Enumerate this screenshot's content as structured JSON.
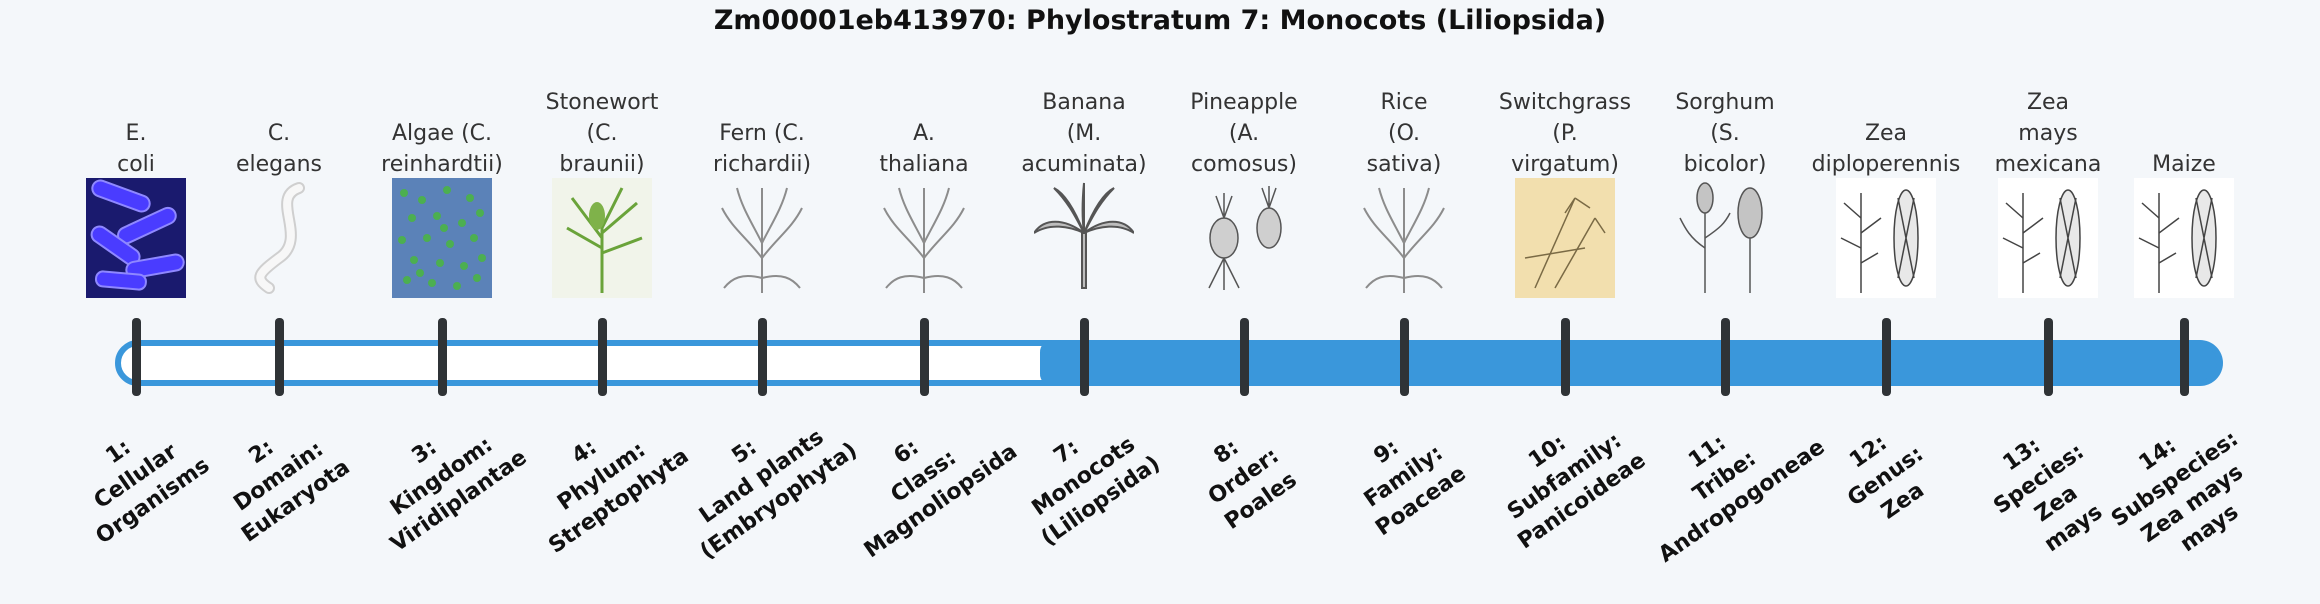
{
  "title": "Zm00001eb413970: Phylostratum 7: Monocots (Liliopsida)",
  "colors": {
    "bar": "#3a97db",
    "tick": "#2f3336",
    "background": "#f4f7fa"
  },
  "current_stratum": 7,
  "strata": [
    {
      "top": [
        "E.",
        "coli"
      ],
      "bottom": [
        "1:",
        "Cellular",
        "Organisms"
      ],
      "image": "ecoli-bacteria-image"
    },
    {
      "top": [
        "C.",
        "elegans"
      ],
      "bottom": [
        "2:",
        "Domain:",
        "Eukaryota"
      ],
      "image": "worm-image"
    },
    {
      "top": [
        "Algae (C.",
        "reinhardtii)"
      ],
      "bottom": [
        "3:",
        "Kingdom:",
        "Viridiplantae"
      ],
      "image": "algae-image"
    },
    {
      "top": [
        "Stonewort",
        "(C.",
        "braunii)"
      ],
      "bottom": [
        "4:",
        "Phylum:",
        "Streptophyta"
      ],
      "image": "stonewort-image"
    },
    {
      "top": [
        "Fern (C.",
        "richardii)"
      ],
      "bottom": [
        "5:",
        "Land plants",
        "(Embryophyta)"
      ],
      "image": "fern-image"
    },
    {
      "top": [
        "A.",
        "thaliana"
      ],
      "bottom": [
        "6:",
        "Class:",
        "Magnoliopsida"
      ],
      "image": "arabidopsis-image"
    },
    {
      "top": [
        "Banana",
        "(M.",
        "acuminata)"
      ],
      "bottom": [
        "7:",
        "Monocots",
        "(Liliopsida)"
      ],
      "image": "banana-image"
    },
    {
      "top": [
        "Pineapple",
        "(A.",
        "comosus)"
      ],
      "bottom": [
        "8:",
        "Order:",
        "Poales"
      ],
      "image": "pineapple-image"
    },
    {
      "top": [
        "Rice",
        "(O.",
        "sativa)"
      ],
      "bottom": [
        "9:",
        "Family:",
        "Poaceae"
      ],
      "image": "rice-image"
    },
    {
      "top": [
        "Switchgrass",
        "(P.",
        "virgatum)"
      ],
      "bottom": [
        "10:",
        "Subfamily:",
        "Panicoideae"
      ],
      "image": "switchgrass-image"
    },
    {
      "top": [
        "Sorghum",
        "(S.",
        "bicolor)"
      ],
      "bottom": [
        "11:",
        "Tribe:",
        "Andropogoneae"
      ],
      "image": "sorghum-image"
    },
    {
      "top": [
        "Zea",
        "diploperennis"
      ],
      "bottom": [
        "12:",
        "Genus:",
        "Zea"
      ],
      "image": "zea-diploperennis-image"
    },
    {
      "top": [
        "Zea",
        "mays",
        "mexicana"
      ],
      "bottom": [
        "13:",
        "Species:",
        "Zea",
        "mays"
      ],
      "image": "zea-mexicana-image"
    },
    {
      "top": [
        "Maize"
      ],
      "bottom": [
        "14:",
        "Subspecies:",
        "Zea mays",
        "mays"
      ],
      "image": "maize-image"
    }
  ]
}
